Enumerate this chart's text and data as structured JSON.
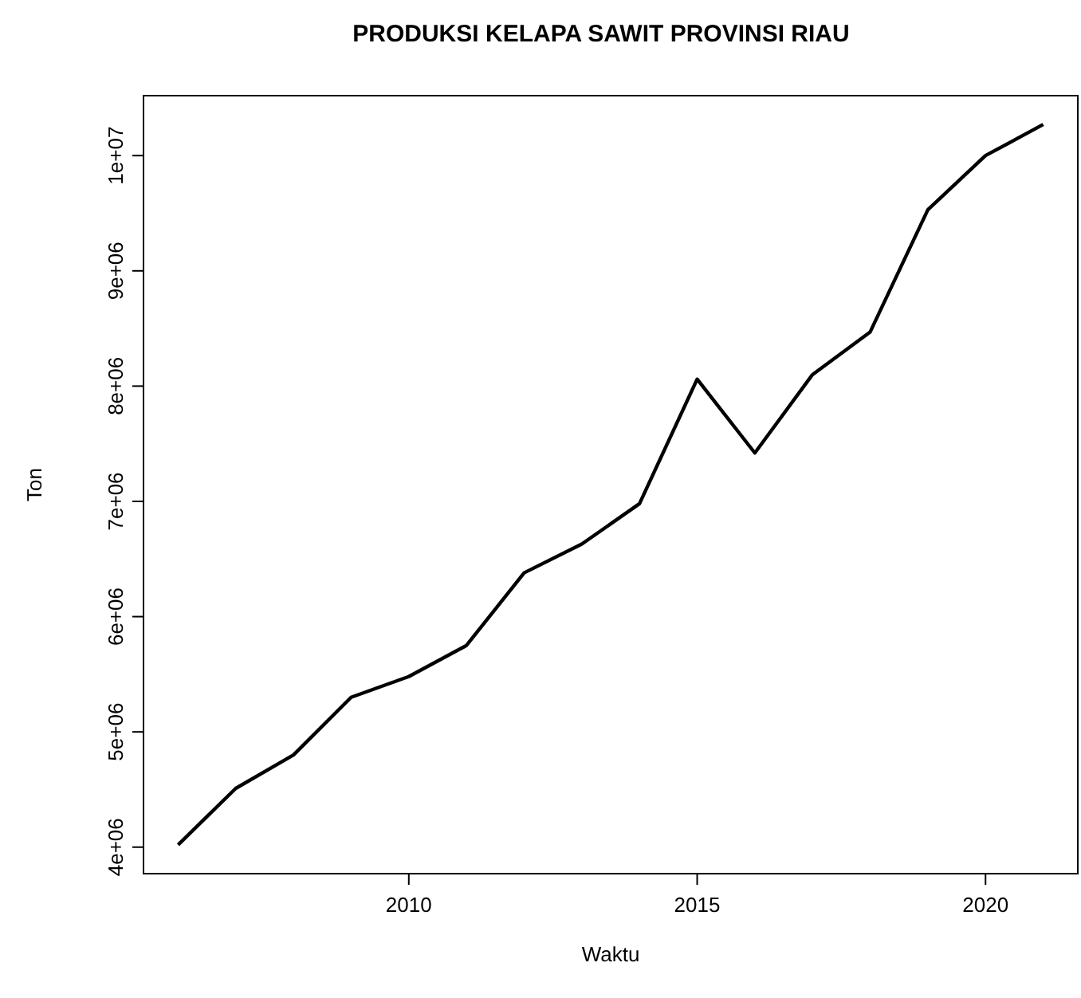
{
  "chart_data": {
    "type": "line",
    "title": "PRODUKSI KELAPA SAWIT PROVINSI RIAU",
    "xlabel": "Waktu",
    "ylabel": "Ton",
    "x": [
      2006,
      2007,
      2008,
      2009,
      2010,
      2011,
      2012,
      2013,
      2014,
      2015,
      2016,
      2017,
      2018,
      2019,
      2020,
      2021
    ],
    "series": [
      {
        "color": "#000000",
        "values": [
          4020000,
          4510000,
          4800000,
          5300000,
          5480000,
          5750000,
          6380000,
          6630000,
          6980000,
          8060000,
          7420000,
          8100000,
          8470000,
          9530000,
          10000000,
          10270000
        ]
      }
    ],
    "xlim": [
      2005.4,
      2021.6
    ],
    "xticks": [
      2010,
      2015,
      2020
    ],
    "ylim": [
      3770000,
      10520000
    ],
    "yticks": [
      {
        "value": 4000000,
        "label": "4e+06"
      },
      {
        "value": 5000000,
        "label": "5e+06"
      },
      {
        "value": 6000000,
        "label": "6e+06"
      },
      {
        "value": 7000000,
        "label": "7e+06"
      },
      {
        "value": 8000000,
        "label": "8e+06"
      },
      {
        "value": 9000000,
        "label": "9e+06"
      },
      {
        "value": 10000000,
        "label": "1e+07"
      }
    ],
    "grid": false,
    "marker": "none",
    "line_style": "solid"
  }
}
